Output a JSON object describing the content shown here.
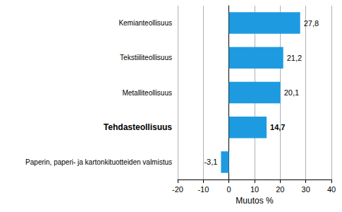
{
  "chart_data": {
    "type": "bar",
    "orientation": "horizontal",
    "categories": [
      "Kemianteollisuus",
      "Tekstiiliteollisuus",
      "Metalliteollisuus",
      "Tehdasteollisuus",
      "Paperin, paperi- ja kartonkituotteiden valmistus"
    ],
    "values": [
      27.8,
      21.2,
      20.1,
      14.7,
      -3.1
    ],
    "value_labels": [
      "27,8",
      "21,2",
      "20,1",
      "14,7",
      "-3,1"
    ],
    "color": "#1e9be0",
    "x_label": "Muutos %",
    "xlim": [
      -20,
      40
    ],
    "xticks": [
      -20,
      -10,
      0,
      10,
      20,
      30,
      40
    ],
    "grid": true,
    "data_labels": true
  }
}
